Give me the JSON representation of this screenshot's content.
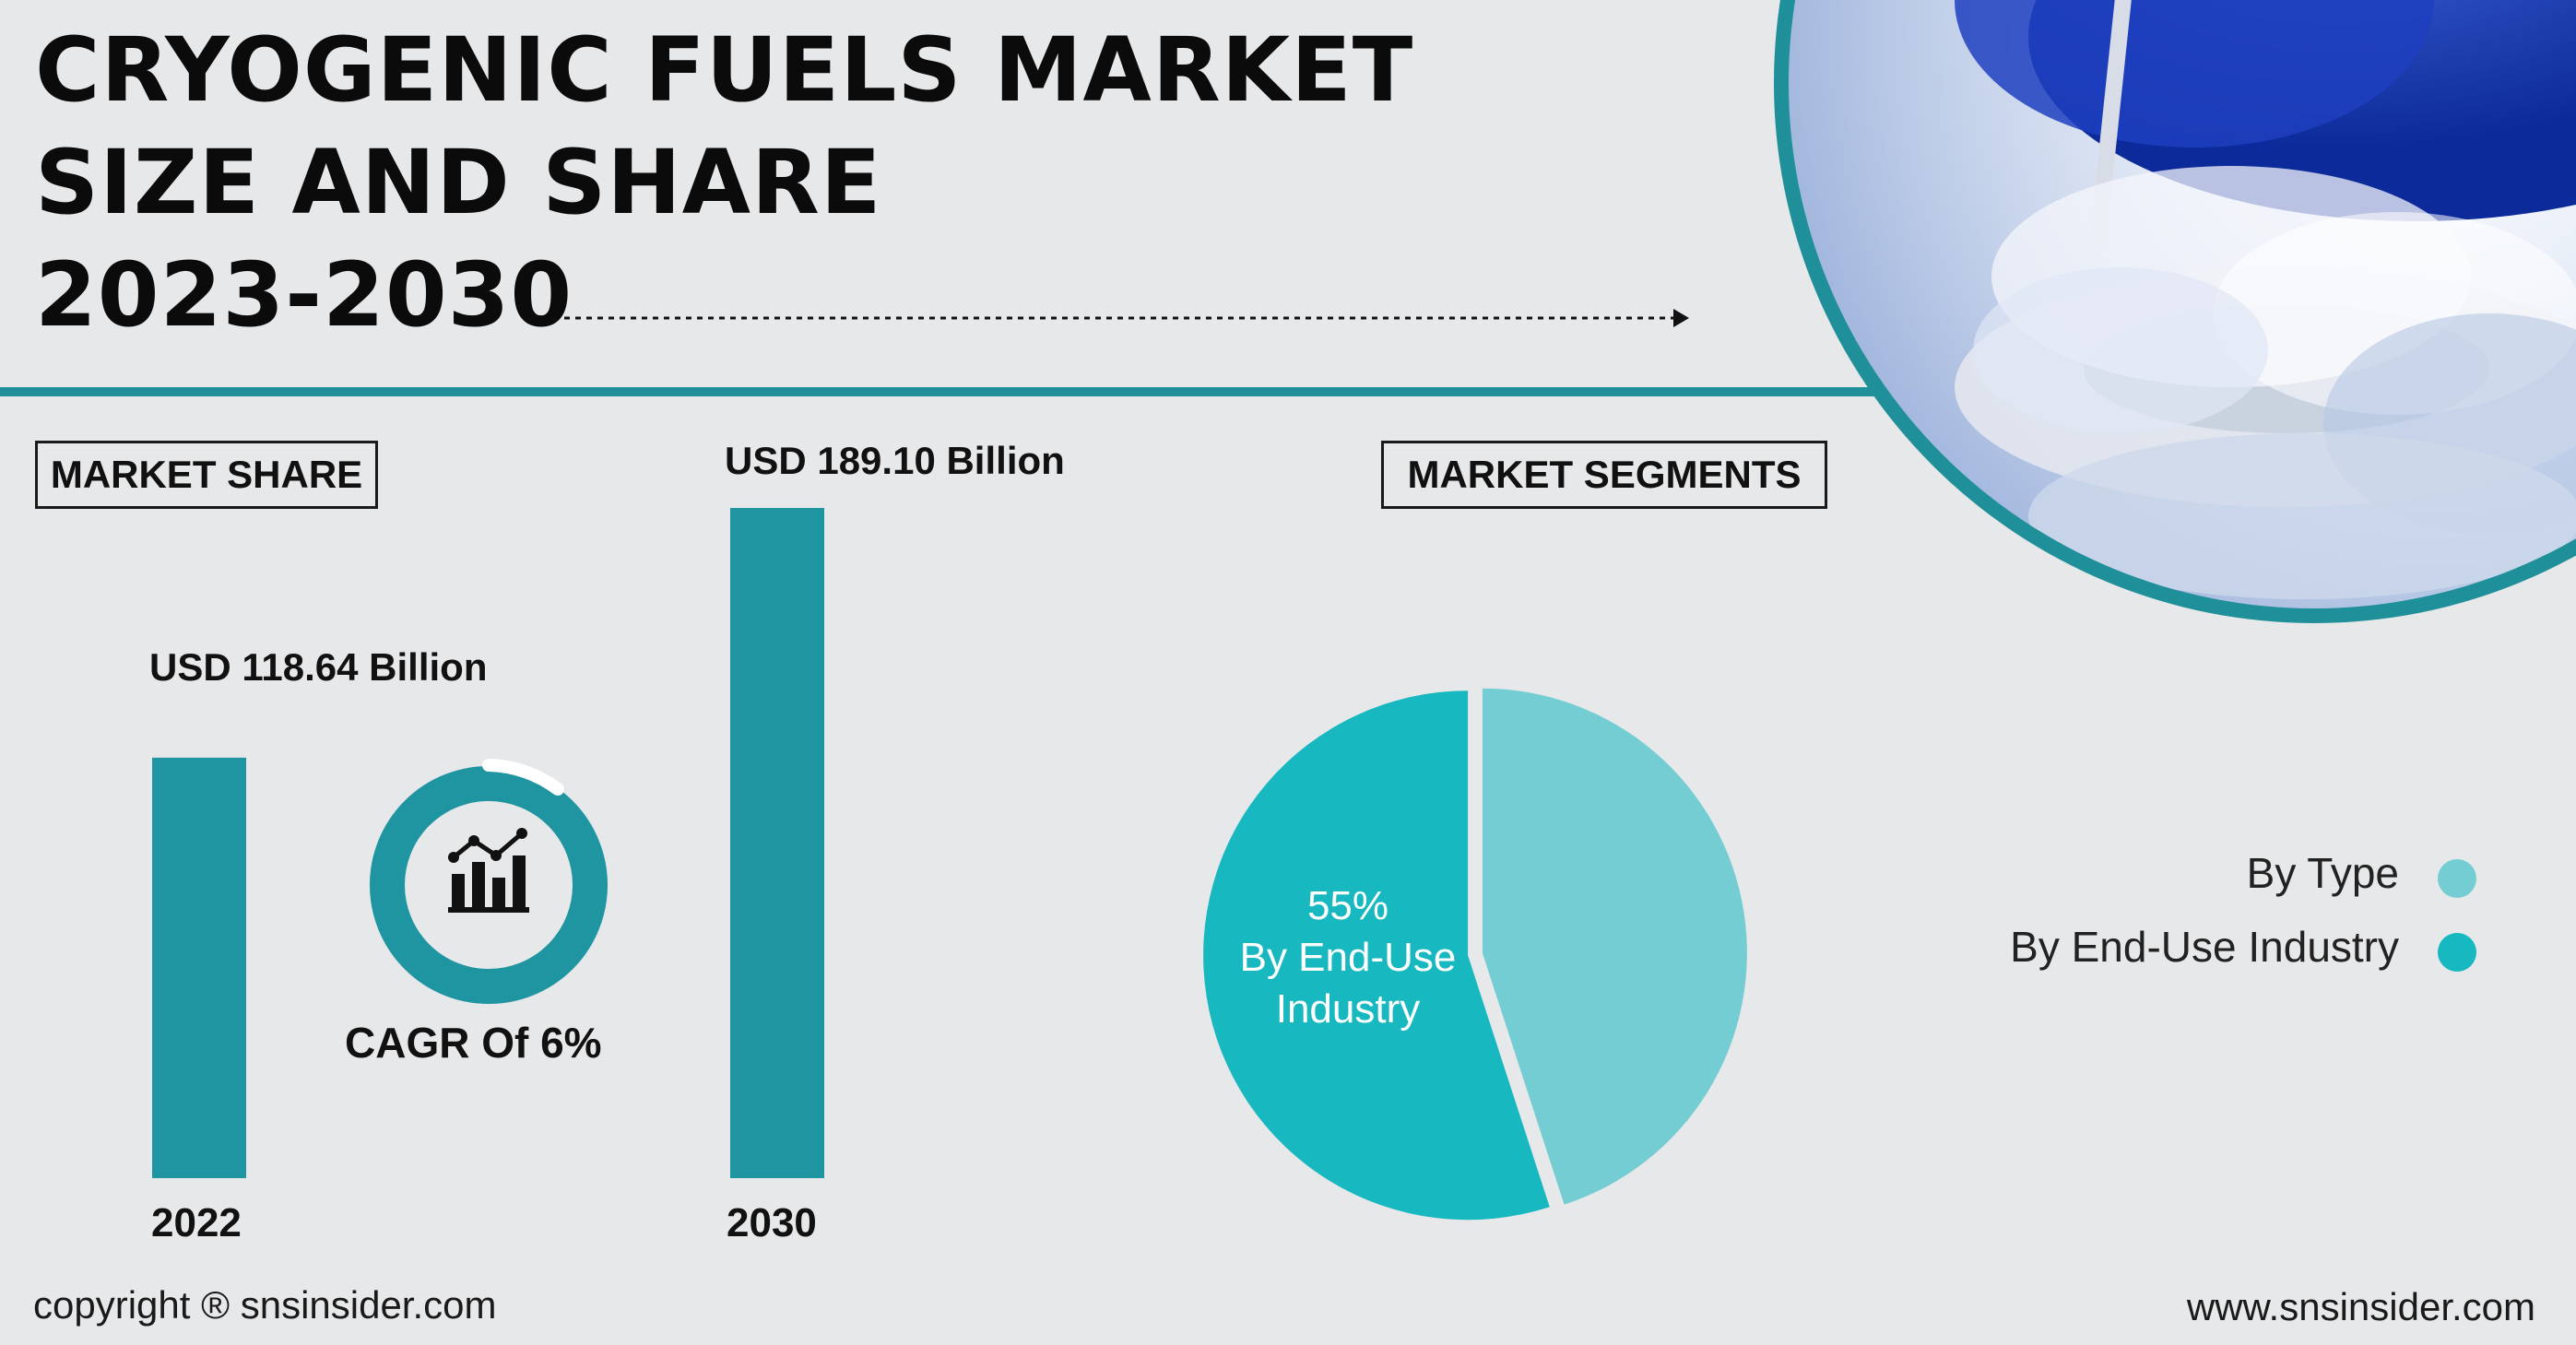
{
  "title": {
    "line1": "CRYOGENIC FUELS MARKET",
    "line2": "SIZE AND SHARE",
    "line3": "2023-2030"
  },
  "market_share_label": "MARKET SHARE",
  "market_segments_label": "MARKET SEGMENTS",
  "cagr_text": "CAGR Of 6%",
  "footer": {
    "copyright": "copyright ® snsinsider.com",
    "website": "www.snsinsider.com"
  },
  "colors": {
    "background": "#e7e8ea",
    "bar": "#2095a2",
    "teal_rule": "#1f8f99",
    "by_type": "#74cdd3",
    "by_end_use": "#17b8c0",
    "cagr_ring": "#2095a2"
  },
  "chart_data": [
    {
      "type": "bar",
      "categories": [
        "2022",
        "2030"
      ],
      "values": [
        118.64,
        189.1
      ],
      "value_labels": [
        "USD 118.64 Billion",
        "USD 189.10 Billion"
      ],
      "title": "",
      "xlabel": "",
      "ylabel": "",
      "grid": false
    },
    {
      "type": "pie",
      "slices": [
        {
          "name": "By End-Use Industry",
          "value": 55,
          "label_pct": "55%",
          "label_text": "By End-Use Industry",
          "color": "#17b8c0"
        },
        {
          "name": "By Type",
          "value": 45,
          "color": "#74cdd3"
        }
      ],
      "legend": [
        {
          "name": "By Type",
          "color": "#74cdd3"
        },
        {
          "name": "By End-Use Industry",
          "color": "#17b8c0"
        }
      ],
      "legend_placement": "right"
    }
  ]
}
